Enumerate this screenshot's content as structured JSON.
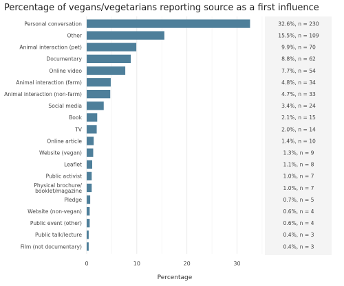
{
  "chart_data": {
    "type": "bar",
    "orientation": "horizontal",
    "title": "Percentage of vegans/vegetarians reporting source as a first influence",
    "xlabel": "Percentage",
    "ylabel": "",
    "xlim": [
      0,
      35
    ],
    "xticks": [
      0,
      10,
      20,
      30
    ],
    "grid": true,
    "bar_color": "#4e7f9a",
    "categories": [
      "Personal conversation",
      "Other",
      "Animal interaction (pet)",
      "Documentary",
      "Online video",
      "Animal interaction (farm)",
      "Animal interaction (non-farm)",
      "Social media",
      "Book",
      "TV",
      "Online article",
      "Website (vegan)",
      "Leaflet",
      "Public activist",
      "Physical brochure/\nbooklet/magazine",
      "Pledge",
      "Website (non-vegan)",
      "Public event (other)",
      "Public talk/lecture",
      "Film (not documentary)"
    ],
    "values": [
      32.6,
      15.5,
      9.9,
      8.8,
      7.7,
      4.8,
      4.7,
      3.4,
      2.1,
      2.0,
      1.4,
      1.3,
      1.1,
      1.0,
      1.0,
      0.7,
      0.6,
      0.6,
      0.4,
      0.4
    ],
    "labels": [
      "32.6%, n = 230",
      "15.5%, n = 109",
      "9.9%, n = 70",
      "8.8%, n = 62",
      "7.7%, n = 54",
      "4.8%, n = 34",
      "4.7%, n = 33",
      "3.4%, n = 24",
      "2.1%, n = 15",
      "2.0%, n = 14",
      "1.4%, n = 10",
      "1.3%, n = 9",
      "1.1%, n = 8",
      "1.0%, n = 7",
      "1.0%, n = 7",
      "0.7%, n = 5",
      "0.6%, n = 4",
      "0.6%, n = 4",
      "0.4%, n = 3",
      "0.4%, n = 3"
    ]
  }
}
